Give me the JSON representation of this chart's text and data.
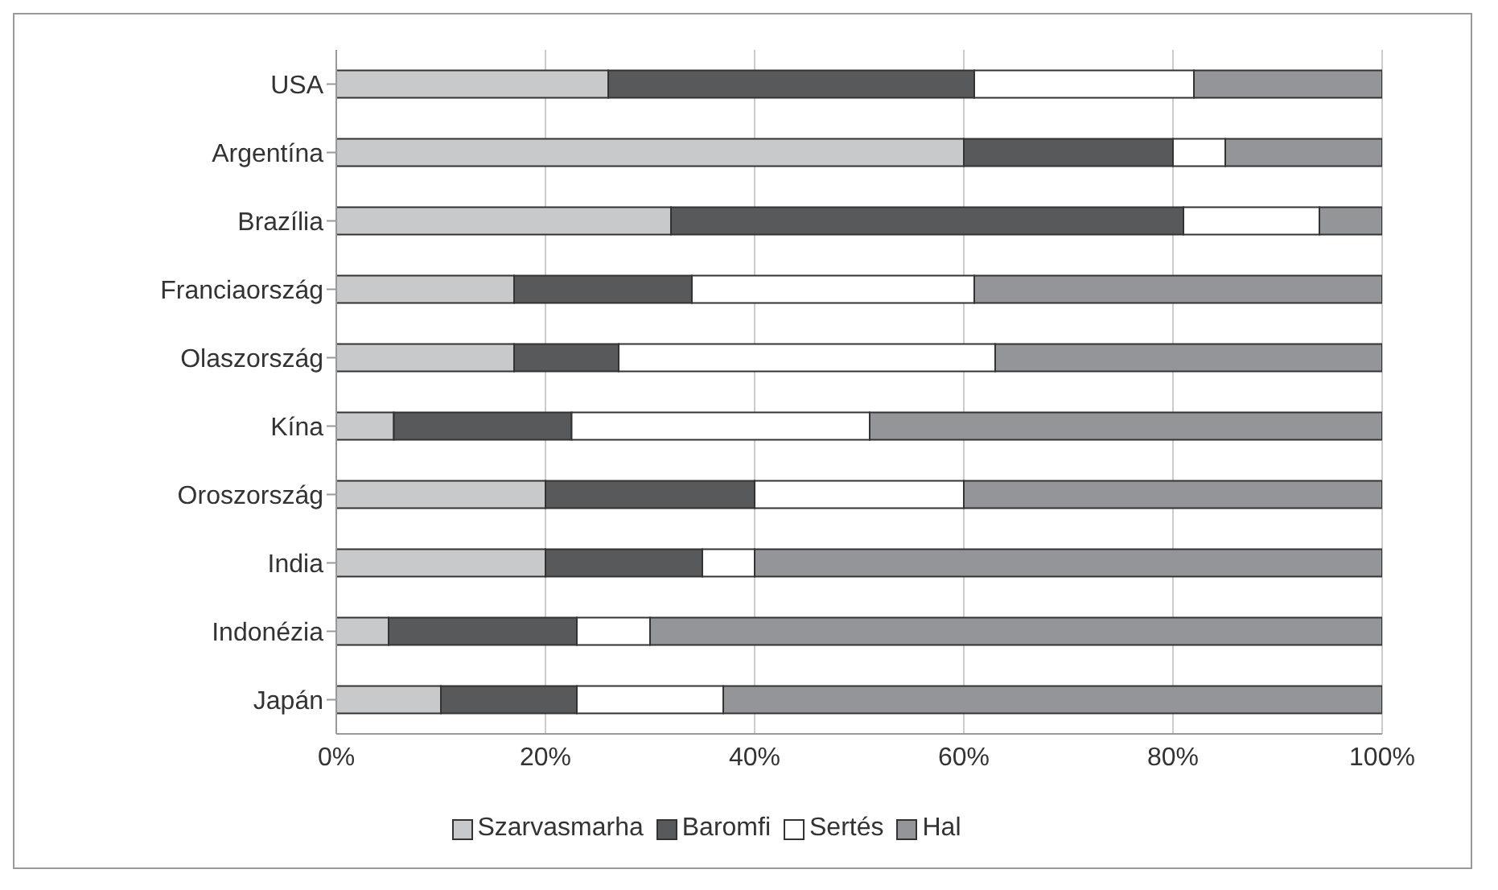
{
  "chart_data": {
    "type": "bar",
    "orientation": "horizontal",
    "stacked": true,
    "categories": [
      "USA",
      "Argentína",
      "Brazília",
      "Franciaország",
      "Olaszország",
      "Kína",
      "Oroszország",
      "India",
      "Indonézia",
      "Japán"
    ],
    "series": [
      {
        "name": "Szarvasmarha",
        "color": "#c8c9cb",
        "values": [
          26,
          60,
          32,
          17,
          17,
          5.5,
          20,
          20,
          5,
          10
        ]
      },
      {
        "name": "Baromfi",
        "color": "#58595b",
        "values": [
          35,
          20,
          49,
          17,
          10,
          17,
          20,
          15,
          18,
          13
        ]
      },
      {
        "name": "Sertés",
        "color": "#ffffff",
        "values": [
          21,
          5,
          13,
          27,
          36,
          28.5,
          20,
          5,
          7,
          14
        ]
      },
      {
        "name": "Hal",
        "color": "#939598",
        "values": [
          18,
          15,
          6,
          39,
          37,
          49,
          40,
          60,
          70,
          63
        ]
      }
    ],
    "xlim": [
      0,
      100
    ],
    "xticks": [
      {
        "value": 0,
        "label": "0%"
      },
      {
        "value": 20,
        "label": "20%"
      },
      {
        "value": 40,
        "label": "40%"
      },
      {
        "value": 60,
        "label": "60%"
      },
      {
        "value": 80,
        "label": "80%"
      },
      {
        "value": 100,
        "label": "100%"
      }
    ],
    "grid": "x",
    "legend": "bottom"
  }
}
